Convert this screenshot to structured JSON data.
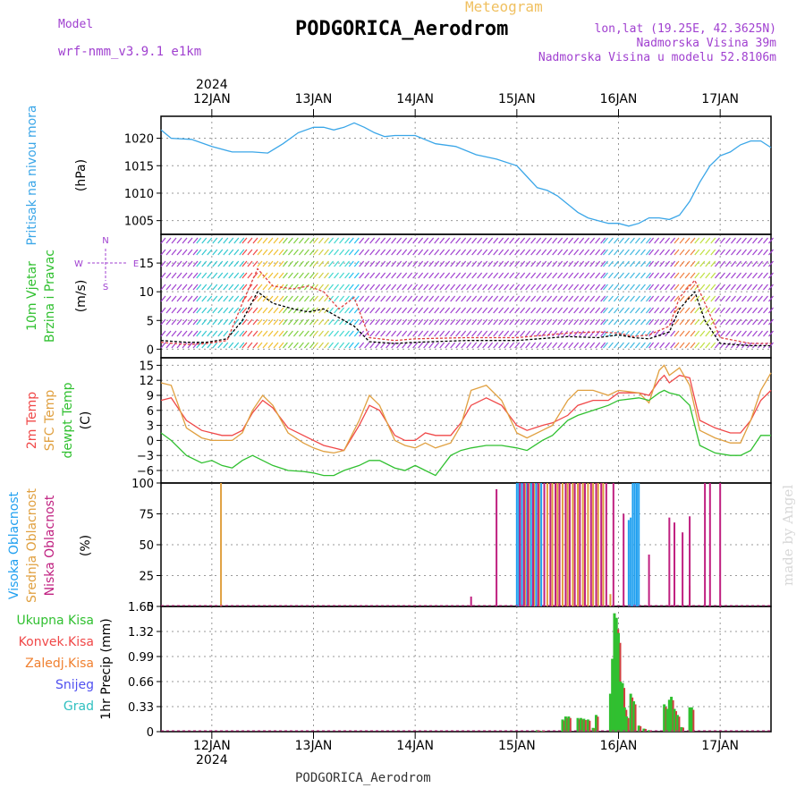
{
  "header": {
    "meteogram_label": "Meteogram",
    "model_label": "Model",
    "model_name": "wrf-nmm_v3.9.1  e1km",
    "station_title": "PODGORICA_Aerodrom",
    "coords": "lon,lat (19.25E, 42.3625N)",
    "elevation": "Nadmorska Visina 39m",
    "model_elevation": "Nadmorska Visina u modelu 52.8106m"
  },
  "footer": {
    "station": "PODGORICA_Aerodrom"
  },
  "watermark": "made by Angel",
  "colors": {
    "pressure": "#3aa6e8",
    "temp2m": "#f04848",
    "sfc": "#e0a040",
    "dewpt": "#30c030",
    "violet": "#a040d0",
    "high_cloud": "#20a0f0",
    "mid_cloud": "#e0a040",
    "low_cloud": "#c02080"
  },
  "time_axis": {
    "year": "2024",
    "x_start_day": 11.5,
    "x_end_day": 17.5,
    "days": [
      {
        "day": 12,
        "label": "12JAN"
      },
      {
        "day": 13,
        "label": "13JAN"
      },
      {
        "day": 14,
        "label": "14JAN"
      },
      {
        "day": 15,
        "label": "15JAN"
      },
      {
        "day": 16,
        "label": "16JAN"
      },
      {
        "day": 17,
        "label": "17JAN"
      }
    ]
  },
  "chart_data": [
    {
      "type": "line",
      "panel": "pressure",
      "ylabel_side": "Pritisak na nivou mora",
      "ylabel": "(hPa)",
      "ylim": [
        1002.5,
        1024
      ],
      "yticks": [
        "1005",
        "1010",
        "1015",
        "1020"
      ],
      "series": [
        {
          "color": "#3aa6e8",
          "x": [
            11.5,
            11.6,
            11.8,
            12.0,
            12.2,
            12.4,
            12.55,
            12.7,
            12.85,
            13.0,
            13.1,
            13.2,
            13.3,
            13.4,
            13.5,
            13.6,
            13.7,
            13.8,
            14.0,
            14.2,
            14.4,
            14.6,
            14.8,
            15.0,
            15.1,
            15.2,
            15.3,
            15.4,
            15.5,
            15.6,
            15.7,
            15.8,
            15.9,
            16.0,
            16.1,
            16.2,
            16.3,
            16.4,
            16.5,
            16.6,
            16.7,
            16.8,
            16.9,
            17.0,
            17.1,
            17.2,
            17.3,
            17.4,
            17.5
          ],
          "y": [
            1021.5,
            1020,
            1019.8,
            1018.5,
            1017.5,
            1017.5,
            1017.3,
            1019,
            1021,
            1022,
            1022,
            1021.5,
            1022,
            1022.8,
            1022,
            1021,
            1020.3,
            1020.5,
            1020.5,
            1019,
            1018.5,
            1017,
            1016.2,
            1015,
            1013,
            1011,
            1010.5,
            1009.5,
            1008,
            1006.5,
            1005.5,
            1005,
            1004.5,
            1004.5,
            1004,
            1004.5,
            1005.5,
            1005.5,
            1005.2,
            1006,
            1008.5,
            1012,
            1015,
            1016.8,
            1017.5,
            1018.8,
            1019.5,
            1019.5,
            1018.3
          ]
        }
      ]
    },
    {
      "type": "line",
      "panel": "wind",
      "ylabel_side": [
        "10m Vjetar",
        "Brzina i Pravac"
      ],
      "ylabel": "(m/s)",
      "compass": [
        "N",
        "E",
        "S",
        "W"
      ],
      "ylim": [
        -1.5,
        20
      ],
      "yticks": [
        "0",
        "5",
        "10",
        "15"
      ],
      "series": [
        {
          "color": "#000000",
          "style": "dashed",
          "x": [
            11.5,
            11.75,
            11.95,
            12.15,
            12.3,
            12.45,
            12.6,
            12.8,
            12.95,
            13.1,
            13.25,
            13.4,
            13.55,
            13.8,
            14.0,
            14.5,
            15.0,
            15.5,
            15.8,
            16.0,
            16.15,
            16.3,
            16.5,
            16.6,
            16.75,
            16.85,
            17.0,
            17.3,
            17.5
          ],
          "y": [
            1.5,
            1.2,
            1.2,
            1.8,
            5,
            10,
            8,
            7,
            6.5,
            7,
            5.5,
            4,
            1.3,
            1,
            1.2,
            1.5,
            1.5,
            2.2,
            2,
            2.5,
            2,
            1.8,
            3,
            7,
            10,
            5,
            1,
            0.6,
            0.6
          ]
        },
        {
          "color": "#e04040",
          "style": "dashed",
          "x": [
            11.5,
            11.75,
            11.95,
            12.15,
            12.3,
            12.45,
            12.6,
            12.8,
            12.95,
            13.1,
            13.25,
            13.4,
            13.55,
            13.8,
            14.0,
            14.5,
            15.0,
            15.5,
            15.8,
            16.0,
            16.15,
            16.3,
            16.5,
            16.6,
            16.75,
            16.85,
            17.0,
            17.3,
            17.5
          ],
          "y": [
            1.2,
            0.8,
            1,
            1.5,
            8,
            14,
            11,
            10.5,
            11,
            10,
            7,
            9,
            2,
            1.5,
            1.8,
            2,
            2,
            2.8,
            3,
            2.8,
            2.2,
            2.5,
            4,
            9,
            12,
            8,
            2,
            1,
            1
          ]
        }
      ]
    },
    {
      "type": "line",
      "panel": "temperature",
      "ylabel_side": [
        "2m Temp",
        "SFC Temp",
        "dewpt Temp"
      ],
      "ylabel": "(C)",
      "ylim": [
        -8.5,
        16.5
      ],
      "yticks": [
        "−6",
        "−3",
        "0",
        "3",
        "6",
        "9",
        "12",
        "15"
      ],
      "series": [
        {
          "name": "2m Temp",
          "color": "#f04848",
          "x": [
            11.5,
            11.6,
            11.75,
            11.9,
            12.0,
            12.1,
            12.2,
            12.3,
            12.4,
            12.5,
            12.6,
            12.75,
            12.9,
            13.0,
            13.1,
            13.2,
            13.3,
            13.45,
            13.55,
            13.65,
            13.8,
            13.9,
            14.0,
            14.1,
            14.2,
            14.35,
            14.45,
            14.55,
            14.7,
            14.85,
            15.0,
            15.1,
            15.25,
            15.35,
            15.5,
            15.6,
            15.75,
            15.9,
            16.0,
            16.2,
            16.3,
            16.4,
            16.45,
            16.5,
            16.6,
            16.7,
            16.8,
            16.95,
            17.1,
            17.2,
            17.3,
            17.4,
            17.5
          ],
          "y": [
            8,
            8.5,
            4,
            2,
            1.5,
            1,
            1,
            2,
            5.5,
            8,
            6.5,
            2.5,
            1,
            0,
            -1,
            -1.5,
            -2,
            3,
            7,
            6,
            1,
            0,
            0,
            1.5,
            1,
            1,
            3.5,
            7,
            8.5,
            7,
            3,
            2,
            3,
            3.5,
            5,
            7,
            8,
            8,
            9.5,
            9.5,
            9,
            12,
            13,
            11.5,
            13,
            12.5,
            4,
            2.5,
            1.5,
            1.5,
            4,
            8,
            10
          ]
        },
        {
          "name": "SFC Temp",
          "color": "#e0a040",
          "x": [
            11.5,
            11.6,
            11.75,
            11.9,
            12.0,
            12.1,
            12.2,
            12.3,
            12.4,
            12.5,
            12.6,
            12.75,
            12.9,
            13.0,
            13.1,
            13.2,
            13.3,
            13.45,
            13.55,
            13.65,
            13.8,
            13.9,
            14.0,
            14.1,
            14.2,
            14.35,
            14.45,
            14.55,
            14.7,
            14.85,
            15.0,
            15.1,
            15.25,
            15.35,
            15.5,
            15.6,
            15.75,
            15.9,
            16.0,
            16.2,
            16.3,
            16.4,
            16.45,
            16.5,
            16.6,
            16.7,
            16.8,
            16.95,
            17.1,
            17.2,
            17.3,
            17.4,
            17.5
          ],
          "y": [
            11.5,
            11,
            2.5,
            0.5,
            0,
            0,
            0,
            1.5,
            6,
            9,
            7,
            1.5,
            -0.5,
            -1.5,
            -2.2,
            -2.5,
            -2,
            4,
            9,
            7,
            0,
            -1,
            -1.5,
            -0.5,
            -1.5,
            -0.5,
            3,
            10,
            11,
            8,
            1.5,
            0.5,
            2,
            3,
            8,
            10,
            10,
            9,
            10,
            9.5,
            7.5,
            14,
            15,
            13,
            14.5,
            11,
            2,
            0.5,
            -0.5,
            -0.5,
            4,
            10,
            13.5
          ]
        },
        {
          "name": "dewpt Temp",
          "color": "#30c030",
          "x": [
            11.5,
            11.6,
            11.75,
            11.9,
            12.0,
            12.1,
            12.2,
            12.3,
            12.4,
            12.5,
            12.6,
            12.75,
            12.9,
            13.0,
            13.1,
            13.2,
            13.3,
            13.45,
            13.55,
            13.65,
            13.8,
            13.9,
            14.0,
            14.1,
            14.2,
            14.35,
            14.45,
            14.55,
            14.7,
            14.85,
            15.0,
            15.1,
            15.25,
            15.35,
            15.5,
            15.6,
            15.75,
            15.9,
            16.0,
            16.2,
            16.3,
            16.4,
            16.45,
            16.5,
            16.6,
            16.7,
            16.8,
            16.95,
            17.1,
            17.2,
            17.3,
            17.4,
            17.5
          ],
          "y": [
            1.5,
            0,
            -3,
            -4.5,
            -4,
            -5,
            -5.5,
            -4,
            -3,
            -4,
            -5,
            -6,
            -6.2,
            -6.5,
            -7,
            -7,
            -6,
            -5,
            -4,
            -4,
            -5.5,
            -6,
            -5,
            -6,
            -7,
            -3,
            -2,
            -1.5,
            -1,
            -1,
            -1.5,
            -2,
            0,
            1,
            4,
            5,
            6,
            7,
            8,
            8.5,
            8,
            9.5,
            10,
            9.5,
            9,
            7,
            -1,
            -2.5,
            -3,
            -3,
            -2,
            1,
            1
          ]
        }
      ]
    },
    {
      "type": "bar",
      "panel": "clouds",
      "ylabel_side": [
        "Visoka Oblacnost",
        "Srednja Oblacnost",
        "Niska Oblacnost"
      ],
      "ylabel": "(%)",
      "ylim": [
        0,
        100
      ],
      "yticks": [
        "0",
        "25",
        "50",
        "75",
        "100"
      ],
      "series": [
        {
          "name": "Visoka Oblacnost",
          "color": "#20a0f0",
          "x": [
            15.0,
            15.02,
            15.05,
            15.1,
            15.14,
            15.19,
            15.24,
            16.1,
            16.12,
            16.14,
            16.16,
            16.18,
            16.2
          ],
          "values": [
            100,
            100,
            100,
            100,
            100,
            100,
            100,
            70,
            72,
            100,
            100,
            100,
            100
          ]
        },
        {
          "name": "Srednja Oblacnost",
          "color": "#e0a040",
          "x": [
            12.09,
            15.08,
            15.12,
            15.17,
            15.22,
            15.3,
            15.35,
            15.4,
            15.45,
            15.5,
            15.55,
            15.6,
            15.65,
            15.7,
            15.75,
            15.8,
            15.85,
            15.92,
            16.7
          ],
          "values": [
            100,
            100,
            100,
            100,
            100,
            100,
            100,
            100,
            100,
            100,
            100,
            100,
            100,
            100,
            100,
            100,
            100,
            10,
            17
          ]
        },
        {
          "name": "Niska Oblacnost",
          "color": "#c02080",
          "x": [
            14.55,
            14.8,
            15.03,
            15.07,
            15.11,
            15.16,
            15.21,
            15.27,
            15.33,
            15.38,
            15.42,
            15.48,
            15.52,
            15.57,
            15.62,
            15.67,
            15.73,
            15.78,
            15.83,
            15.88,
            15.95,
            16.05,
            16.3,
            16.5,
            16.55,
            16.63,
            16.7,
            16.85,
            16.9,
            17.0
          ],
          "values": [
            8,
            95,
            100,
            100,
            100,
            100,
            100,
            100,
            100,
            100,
            100,
            100,
            100,
            100,
            100,
            100,
            100,
            100,
            100,
            100,
            100,
            75,
            42,
            72,
            68,
            60,
            73,
            100,
            100,
            100
          ]
        }
      ]
    },
    {
      "type": "bar",
      "panel": "precipitation",
      "legend": [
        "Ukupna Kisa",
        "Konvek.Kisa",
        "Zaledj.Kisa",
        "Snijeg",
        "Grad"
      ],
      "legend_colors": [
        "#30c030",
        "#f04848",
        "#f08030",
        "#5050f0",
        "#30c0c0"
      ],
      "ylabel": "1hr Precip (mm)",
      "ylim": [
        0,
        1.65
      ],
      "yticks": [
        "0",
        "0.33",
        "0.66",
        "0.99",
        "1.32",
        "1.65"
      ],
      "series": [
        {
          "name": "Ukupna Kisa",
          "x": [
            15.2,
            15.25,
            15.45,
            15.48,
            15.51,
            15.6,
            15.63,
            15.66,
            15.7,
            15.75,
            15.78,
            15.92,
            15.94,
            15.96,
            15.98,
            16.0,
            16.02,
            16.04,
            16.06,
            16.08,
            16.12,
            16.15,
            16.2,
            16.25,
            16.3,
            16.45,
            16.48,
            16.5,
            16.52,
            16.55,
            16.58,
            16.62,
            16.7,
            16.72
          ],
          "values": [
            0.02,
            0.01,
            0.16,
            0.2,
            0.2,
            0.18,
            0.18,
            0.17,
            0.16,
            0.05,
            0.22,
            0.5,
            0.96,
            1.56,
            1.5,
            1.3,
            0.66,
            0.64,
            0.32,
            0.2,
            0.5,
            0.4,
            0.08,
            0.04,
            0.02,
            0.36,
            0.3,
            0.42,
            0.46,
            0.3,
            0.22,
            0.06,
            0.32,
            0.32
          ]
        }
      ]
    }
  ]
}
